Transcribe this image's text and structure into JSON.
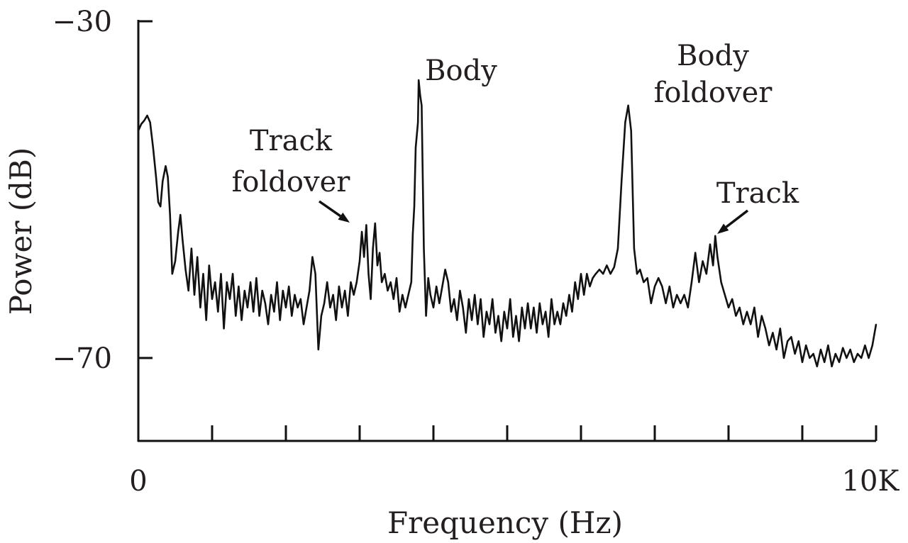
{
  "chart_data": {
    "type": "line",
    "title": "",
    "xlabel": "Frequency (Hz)",
    "ylabel": "Power (dB)",
    "x_tick_labels": {
      "start": "0",
      "end": "10K"
    },
    "y_tick_labels": {
      "top": "−30",
      "bottom": "−70"
    },
    "xlim": [
      0,
      10000
    ],
    "ylim": [
      -80,
      -30
    ],
    "grid": false,
    "colors": {
      "line": "#111111",
      "axis": "#111111",
      "text": "#231f20"
    },
    "annotations": [
      {
        "id": "track-foldover",
        "lines": [
          "Track",
          "foldover"
        ],
        "x": 2900,
        "y": -54.2,
        "arrow": true
      },
      {
        "id": "body",
        "lines": [
          "Body"
        ],
        "x": 3750,
        "y": -36.5,
        "arrow": false
      },
      {
        "id": "body-foldover",
        "lines": [
          "Body",
          "foldover"
        ],
        "x": 6950,
        "y": -39.2,
        "arrow": false
      },
      {
        "id": "track",
        "lines": [
          "Track"
        ],
        "x": 7800,
        "y": -55.3,
        "arrow": true
      }
    ],
    "series": [
      {
        "values": [
          [
            0,
            -43
          ],
          [
            40,
            -42.2
          ],
          [
            80,
            -41.8
          ],
          [
            120,
            -41.2
          ],
          [
            160,
            -42
          ],
          [
            200,
            -45
          ],
          [
            240,
            -48.5
          ],
          [
            270,
            -51.5
          ],
          [
            300,
            -52
          ],
          [
            330,
            -49
          ],
          [
            370,
            -47.2
          ],
          [
            400,
            -48.5
          ],
          [
            430,
            -53
          ],
          [
            460,
            -60
          ],
          [
            500,
            -58.5
          ],
          [
            540,
            -55
          ],
          [
            570,
            -53
          ],
          [
            600,
            -56
          ],
          [
            640,
            -59.5
          ],
          [
            680,
            -62
          ],
          [
            720,
            -57
          ],
          [
            760,
            -62.5
          ],
          [
            800,
            -58
          ],
          [
            840,
            -64
          ],
          [
            880,
            -60
          ],
          [
            920,
            -65.5
          ],
          [
            960,
            -59
          ],
          [
            1000,
            -63
          ],
          [
            1040,
            -61
          ],
          [
            1080,
            -64.5
          ],
          [
            1120,
            -60
          ],
          [
            1160,
            -66.5
          ],
          [
            1200,
            -61
          ],
          [
            1240,
            -63
          ],
          [
            1280,
            -60
          ],
          [
            1320,
            -65
          ],
          [
            1360,
            -61.5
          ],
          [
            1400,
            -65.5
          ],
          [
            1440,
            -62
          ],
          [
            1480,
            -64
          ],
          [
            1520,
            -61
          ],
          [
            1560,
            -64.5
          ],
          [
            1600,
            -60.5
          ],
          [
            1640,
            -65
          ],
          [
            1680,
            -62
          ],
          [
            1720,
            -63.5
          ],
          [
            1760,
            -66
          ],
          [
            1800,
            -62.5
          ],
          [
            1840,
            -64.5
          ],
          [
            1880,
            -61
          ],
          [
            1920,
            -65.5
          ],
          [
            1960,
            -62
          ],
          [
            2000,
            -64
          ],
          [
            2040,
            -61.5
          ],
          [
            2080,
            -65
          ],
          [
            2120,
            -62.5
          ],
          [
            2160,
            -64
          ],
          [
            2200,
            -63
          ],
          [
            2240,
            -66
          ],
          [
            2280,
            -64
          ],
          [
            2320,
            -62
          ],
          [
            2360,
            -58
          ],
          [
            2400,
            -60
          ],
          [
            2440,
            -69
          ],
          [
            2480,
            -65
          ],
          [
            2520,
            -63.5
          ],
          [
            2560,
            -61
          ],
          [
            2600,
            -64
          ],
          [
            2640,
            -62.5
          ],
          [
            2680,
            -65.5
          ],
          [
            2720,
            -61.5
          ],
          [
            2760,
            -64
          ],
          [
            2800,
            -62
          ],
          [
            2840,
            -65
          ],
          [
            2880,
            -61
          ],
          [
            2920,
            -62.5
          ],
          [
            2960,
            -61
          ],
          [
            3000,
            -58.5
          ],
          [
            3030,
            -55
          ],
          [
            3060,
            -58
          ],
          [
            3090,
            -54.2
          ],
          [
            3120,
            -60
          ],
          [
            3150,
            -63
          ],
          [
            3180,
            -57
          ],
          [
            3210,
            -54
          ],
          [
            3240,
            -59
          ],
          [
            3270,
            -57.5
          ],
          [
            3300,
            -61
          ],
          [
            3340,
            -60
          ],
          [
            3380,
            -62
          ],
          [
            3420,
            -61
          ],
          [
            3460,
            -63
          ],
          [
            3500,
            -60.5
          ],
          [
            3540,
            -64.5
          ],
          [
            3580,
            -62.5
          ],
          [
            3620,
            -64
          ],
          [
            3660,
            -62.5
          ],
          [
            3700,
            -61
          ],
          [
            3720,
            -55.3
          ],
          [
            3740,
            -52
          ],
          [
            3760,
            -45
          ],
          [
            3790,
            -42
          ],
          [
            3800,
            -37
          ],
          [
            3820,
            -38.8
          ],
          [
            3840,
            -40
          ],
          [
            3870,
            -57
          ],
          [
            3900,
            -65
          ],
          [
            3930,
            -60.5
          ],
          [
            3960,
            -62.5
          ],
          [
            4000,
            -64
          ],
          [
            4040,
            -61.5
          ],
          [
            4080,
            -63.5
          ],
          [
            4120,
            -61.5
          ],
          [
            4160,
            -59.5
          ],
          [
            4200,
            -61
          ],
          [
            4240,
            -64.5
          ],
          [
            4280,
            -63
          ],
          [
            4320,
            -65.5
          ],
          [
            4360,
            -62
          ],
          [
            4400,
            -64
          ],
          [
            4440,
            -67
          ],
          [
            4480,
            -63
          ],
          [
            4520,
            -65.5
          ],
          [
            4560,
            -62.5
          ],
          [
            4600,
            -66
          ],
          [
            4640,
            -63
          ],
          [
            4680,
            -67.5
          ],
          [
            4720,
            -64.5
          ],
          [
            4760,
            -66
          ],
          [
            4800,
            -63
          ],
          [
            4840,
            -67
          ],
          [
            4880,
            -65
          ],
          [
            4920,
            -68
          ],
          [
            4960,
            -64.5
          ],
          [
            5000,
            -66.5
          ],
          [
            5040,
            -63
          ],
          [
            5080,
            -67.5
          ],
          [
            5120,
            -65
          ],
          [
            5160,
            -68
          ],
          [
            5200,
            -64
          ],
          [
            5240,
            -66.5
          ],
          [
            5280,
            -63.5
          ],
          [
            5320,
            -66.5
          ],
          [
            5360,
            -64
          ],
          [
            5400,
            -67
          ],
          [
            5440,
            -63.5
          ],
          [
            5480,
            -66
          ],
          [
            5520,
            -64.5
          ],
          [
            5560,
            -67.5
          ],
          [
            5600,
            -63
          ],
          [
            5640,
            -66
          ],
          [
            5680,
            -64.5
          ],
          [
            5720,
            -66
          ],
          [
            5760,
            -63.5
          ],
          [
            5800,
            -65
          ],
          [
            5840,
            -62.5
          ],
          [
            5880,
            -64.5
          ],
          [
            5920,
            -61
          ],
          [
            5960,
            -63
          ],
          [
            6000,
            -60
          ],
          [
            6040,
            -62.5
          ],
          [
            6080,
            -60
          ],
          [
            6120,
            -61.5
          ],
          [
            6160,
            -60.5
          ],
          [
            6200,
            -60
          ],
          [
            6250,
            -59.5
          ],
          [
            6300,
            -60
          ],
          [
            6350,
            -59
          ],
          [
            6400,
            -60
          ],
          [
            6450,
            -59.2
          ],
          [
            6500,
            -57
          ],
          [
            6550,
            -49
          ],
          [
            6600,
            -42
          ],
          [
            6640,
            -40
          ],
          [
            6680,
            -43
          ],
          [
            6720,
            -57
          ],
          [
            6760,
            -60
          ],
          [
            6800,
            -59.5
          ],
          [
            6850,
            -61
          ],
          [
            6900,
            -60.5
          ],
          [
            6950,
            -63.5
          ],
          [
            7000,
            -61.5
          ],
          [
            7050,
            -60.5
          ],
          [
            7100,
            -61.5
          ],
          [
            7150,
            -63.5
          ],
          [
            7200,
            -61.5
          ],
          [
            7250,
            -64
          ],
          [
            7300,
            -62.5
          ],
          [
            7350,
            -63.5
          ],
          [
            7400,
            -62.5
          ],
          [
            7450,
            -64
          ],
          [
            7500,
            -61
          ],
          [
            7550,
            -57.5
          ],
          [
            7600,
            -61
          ],
          [
            7650,
            -58.5
          ],
          [
            7700,
            -60
          ],
          [
            7750,
            -56.5
          ],
          [
            7790,
            -59
          ],
          [
            7820,
            -55.5
          ],
          [
            7850,
            -58
          ],
          [
            7900,
            -61
          ],
          [
            7950,
            -62.5
          ],
          [
            8000,
            -64
          ],
          [
            8050,
            -63
          ],
          [
            8100,
            -65
          ],
          [
            8150,
            -64
          ],
          [
            8200,
            -66
          ],
          [
            8250,
            -64.5
          ],
          [
            8300,
            -66
          ],
          [
            8350,
            -64
          ],
          [
            8400,
            -67.5
          ],
          [
            8450,
            -65
          ],
          [
            8500,
            -66.5
          ],
          [
            8550,
            -68.5
          ],
          [
            8600,
            -67
          ],
          [
            8650,
            -69
          ],
          [
            8700,
            -66.5
          ],
          [
            8750,
            -70
          ],
          [
            8800,
            -68
          ],
          [
            8850,
            -67.5
          ],
          [
            8900,
            -69.5
          ],
          [
            8950,
            -68
          ],
          [
            9000,
            -70.5
          ],
          [
            9050,
            -68.5
          ],
          [
            9100,
            -70
          ],
          [
            9150,
            -69.5
          ],
          [
            9200,
            -71
          ],
          [
            9250,
            -69
          ],
          [
            9300,
            -70.5
          ],
          [
            9350,
            -68.5
          ],
          [
            9400,
            -71
          ],
          [
            9450,
            -69.5
          ],
          [
            9500,
            -70.5
          ],
          [
            9550,
            -68.8
          ],
          [
            9600,
            -70
          ],
          [
            9650,
            -69
          ],
          [
            9700,
            -70.5
          ],
          [
            9750,
            -69.5
          ],
          [
            9800,
            -70
          ],
          [
            9850,
            -68.5
          ],
          [
            9900,
            -70
          ],
          [
            9950,
            -68.5
          ],
          [
            10000,
            -66
          ]
        ]
      }
    ]
  }
}
